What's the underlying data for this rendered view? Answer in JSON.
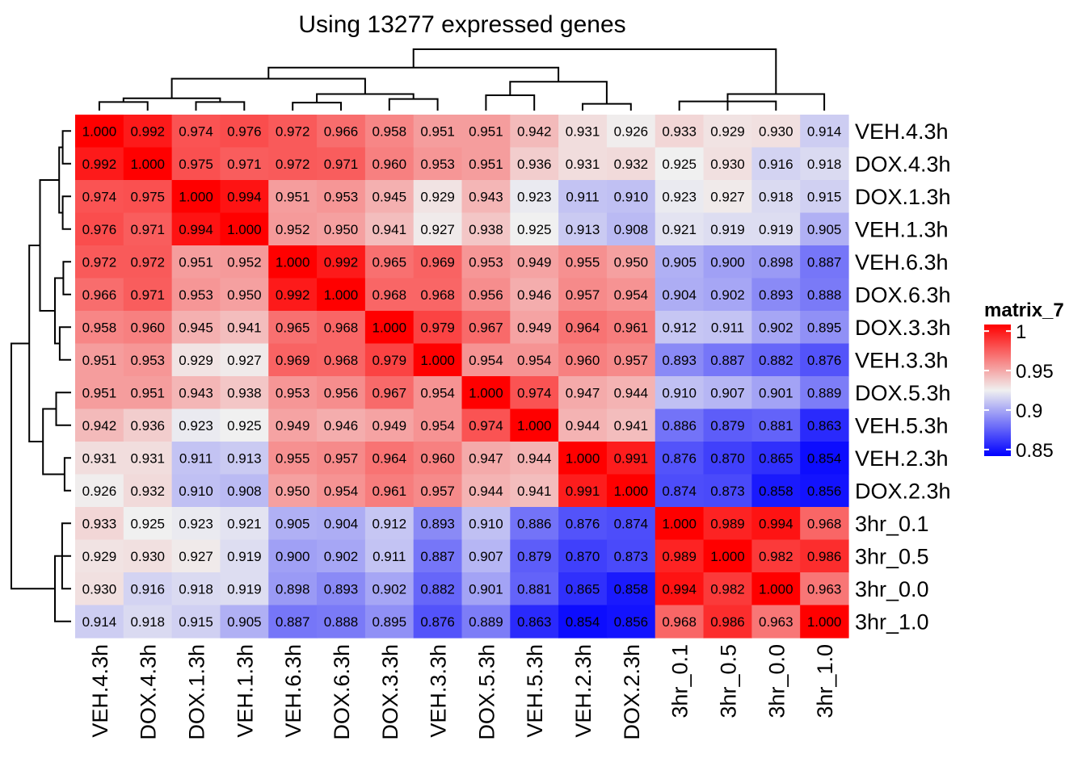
{
  "chart_data": {
    "type": "heatmap",
    "title": "Using 13277 expressed genes",
    "rows": [
      "VEH.4.3h",
      "DOX.4.3h",
      "DOX.1.3h",
      "VEH.1.3h",
      "VEH.6.3h",
      "DOX.6.3h",
      "DOX.3.3h",
      "VEH.3.3h",
      "DOX.5.3h",
      "VEH.5.3h",
      "VEH.2.3h",
      "DOX.2.3h",
      "3hr_0.1",
      "3hr_0.5",
      "3hr_0.0",
      "3hr_1.0"
    ],
    "columns": [
      "VEH.4.3h",
      "DOX.4.3h",
      "DOX.1.3h",
      "VEH.1.3h",
      "VEH.6.3h",
      "DOX.6.3h",
      "DOX.3.3h",
      "VEH.3.3h",
      "DOX.5.3h",
      "VEH.5.3h",
      "VEH.2.3h",
      "DOX.2.3h",
      "3hr_0.1",
      "3hr_0.5",
      "3hr_0.0",
      "3hr_1.0"
    ],
    "values": [
      [
        "1.000",
        "0.992",
        "0.974",
        "0.976",
        "0.972",
        "0.966",
        "0.958",
        "0.951",
        "0.951",
        "0.942",
        "0.931",
        "0.926",
        "0.933",
        "0.929",
        "0.930",
        "0.914"
      ],
      [
        "0.992",
        "1.000",
        "0.975",
        "0.971",
        "0.972",
        "0.971",
        "0.960",
        "0.953",
        "0.951",
        "0.936",
        "0.931",
        "0.932",
        "0.925",
        "0.930",
        "0.916",
        "0.918"
      ],
      [
        "0.974",
        "0.975",
        "1.000",
        "0.994",
        "0.951",
        "0.953",
        "0.945",
        "0.929",
        "0.943",
        "0.923",
        "0.911",
        "0.910",
        "0.923",
        "0.927",
        "0.918",
        "0.915"
      ],
      [
        "0.976",
        "0.971",
        "0.994",
        "1.000",
        "0.952",
        "0.950",
        "0.941",
        "0.927",
        "0.938",
        "0.925",
        "0.913",
        "0.908",
        "0.921",
        "0.919",
        "0.919",
        "0.905"
      ],
      [
        "0.972",
        "0.972",
        "0.951",
        "0.952",
        "1.000",
        "0.992",
        "0.965",
        "0.969",
        "0.953",
        "0.949",
        "0.955",
        "0.950",
        "0.905",
        "0.900",
        "0.898",
        "0.887"
      ],
      [
        "0.966",
        "0.971",
        "0.953",
        "0.950",
        "0.992",
        "1.000",
        "0.968",
        "0.968",
        "0.956",
        "0.946",
        "0.957",
        "0.954",
        "0.904",
        "0.902",
        "0.893",
        "0.888"
      ],
      [
        "0.958",
        "0.960",
        "0.945",
        "0.941",
        "0.965",
        "0.968",
        "1.000",
        "0.979",
        "0.967",
        "0.949",
        "0.964",
        "0.961",
        "0.912",
        "0.911",
        "0.902",
        "0.895"
      ],
      [
        "0.951",
        "0.953",
        "0.929",
        "0.927",
        "0.969",
        "0.968",
        "0.979",
        "1.000",
        "0.954",
        "0.954",
        "0.960",
        "0.957",
        "0.893",
        "0.887",
        "0.882",
        "0.876"
      ],
      [
        "0.951",
        "0.951",
        "0.943",
        "0.938",
        "0.953",
        "0.956",
        "0.967",
        "0.954",
        "1.000",
        "0.974",
        "0.947",
        "0.944",
        "0.910",
        "0.907",
        "0.901",
        "0.889"
      ],
      [
        "0.942",
        "0.936",
        "0.923",
        "0.925",
        "0.949",
        "0.946",
        "0.949",
        "0.954",
        "0.974",
        "1.000",
        "0.944",
        "0.941",
        "0.886",
        "0.879",
        "0.881",
        "0.863"
      ],
      [
        "0.931",
        "0.931",
        "0.911",
        "0.913",
        "0.955",
        "0.957",
        "0.964",
        "0.960",
        "0.947",
        "0.944",
        "1.000",
        "0.991",
        "0.876",
        "0.870",
        "0.865",
        "0.854"
      ],
      [
        "0.926",
        "0.932",
        "0.910",
        "0.908",
        "0.950",
        "0.954",
        "0.961",
        "0.957",
        "0.944",
        "0.941",
        "0.991",
        "1.000",
        "0.874",
        "0.873",
        "0.858",
        "0.856"
      ],
      [
        "0.933",
        "0.925",
        "0.923",
        "0.921",
        "0.905",
        "0.904",
        "0.912",
        "0.893",
        "0.910",
        "0.886",
        "0.876",
        "0.874",
        "1.000",
        "0.989",
        "0.994",
        "0.968"
      ],
      [
        "0.929",
        "0.930",
        "0.927",
        "0.919",
        "0.900",
        "0.902",
        "0.911",
        "0.887",
        "0.907",
        "0.879",
        "0.870",
        "0.873",
        "0.989",
        "1.000",
        "0.982",
        "0.986"
      ],
      [
        "0.930",
        "0.916",
        "0.918",
        "0.919",
        "0.898",
        "0.893",
        "0.902",
        "0.882",
        "0.901",
        "0.881",
        "0.865",
        "0.858",
        "0.994",
        "0.982",
        "1.000",
        "0.963"
      ],
      [
        "0.914",
        "0.918",
        "0.915",
        "0.905",
        "0.887",
        "0.888",
        "0.895",
        "0.876",
        "0.889",
        "0.863",
        "0.854",
        "0.856",
        "0.968",
        "0.986",
        "0.963",
        "1.000"
      ]
    ],
    "color_scale": {
      "low": "#0000ff",
      "mid": "#f0f0f0",
      "high": "#ff0000",
      "domain": [
        0.85,
        0.925,
        1.0
      ]
    },
    "legend": {
      "title": "matrix_7",
      "ticks": [
        "1",
        "0.95",
        "0.9",
        "0.85"
      ],
      "placement": "right"
    },
    "row_dendrogram": true,
    "column_dendrogram": true
  }
}
